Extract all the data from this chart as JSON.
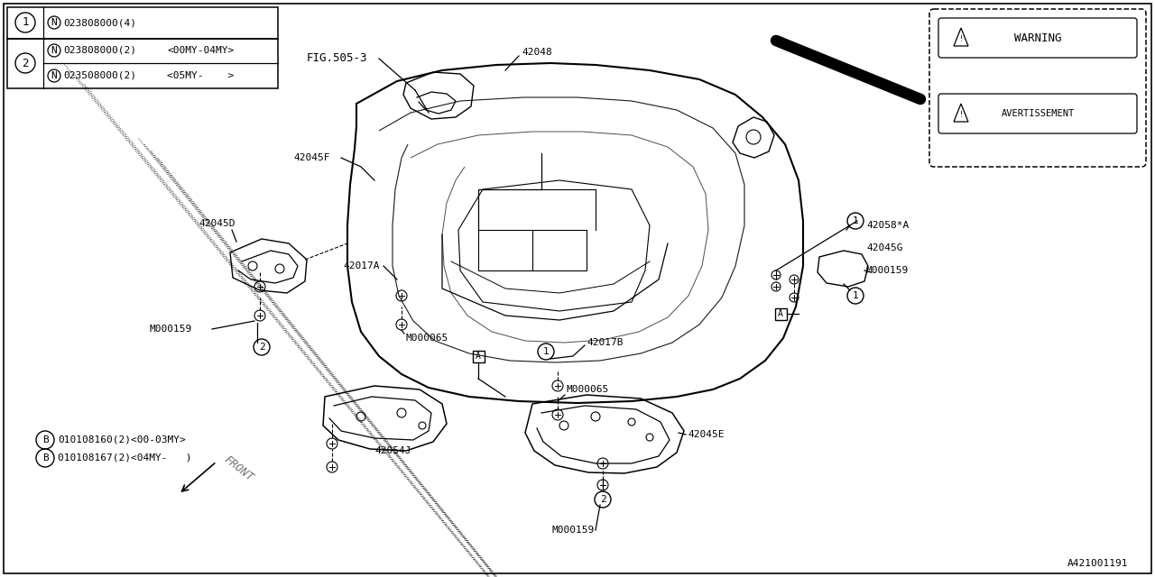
{
  "bg_color": "#ffffff",
  "line_color": "#000000",
  "diagram_id": "A421001191",
  "table_row1": {
    "num": "1",
    "part": "023808000(4)"
  },
  "table_row2a": {
    "num": "2",
    "part": "023808000(2)",
    "note": "<00MY-04MY>"
  },
  "table_row2b": {
    "part": "023508000(2)",
    "note": "<05MY-    >"
  },
  "bolt_B1": "010108160(2)<00-03MY>",
  "bolt_B2": "010108167(2)<04MY-   )",
  "fig_ref": "FIG.505-3",
  "warning_title": "WARNING",
  "avert_title": "AVERTISSEMENT"
}
